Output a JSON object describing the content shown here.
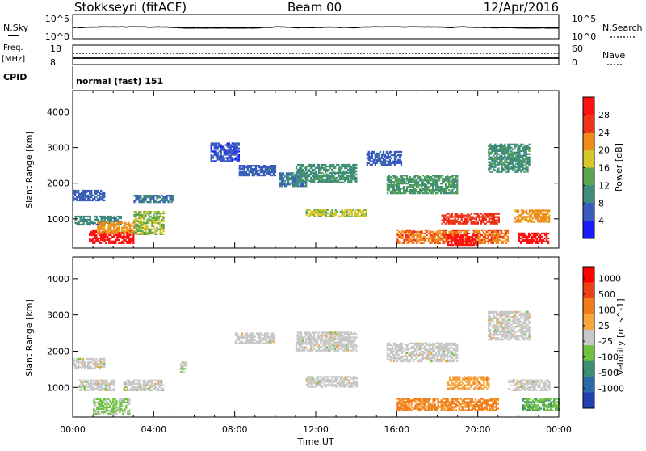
{
  "header": {
    "station": "Stokkseyri (fitACF)",
    "beam": "Beam 00",
    "date": "12/Apr/2016"
  },
  "noise_panel": {
    "left_label": "N.Sky",
    "right_label": "N.Search",
    "left_ticks": [
      "10^5",
      "10^0"
    ],
    "right_ticks": [
      "10^5",
      "10^0"
    ]
  },
  "freq_panel": {
    "left_label_1": "Freq.",
    "left_label_2": "[MHz]",
    "left_ticks": [
      "18",
      "8"
    ],
    "right_ticks": [
      "60",
      "0"
    ],
    "right_label": "Nave"
  },
  "cpid": {
    "label": "CPID",
    "value": "normal (fast) 151"
  },
  "time_axis": {
    "label": "Time UT",
    "ticks": [
      "00:00",
      "04:00",
      "08:00",
      "12:00",
      "16:00",
      "20:00",
      "00:00"
    ]
  },
  "chart_data": [
    {
      "type": "heatmap",
      "title": "",
      "xlabel": "",
      "ylabel": "Slant Range [km]",
      "xlim": [
        0,
        24
      ],
      "ylim": [
        180,
        4600
      ],
      "y_ticks": [
        1000,
        2000,
        3000,
        4000
      ],
      "colorbar": {
        "label": "Power [dB]",
        "ticks": [
          "4",
          "8",
          "12",
          "16",
          "20",
          "24",
          "28"
        ],
        "colors": [
          "#1a1aff",
          "#3b5cbf",
          "#3f8c7a",
          "#5aa650",
          "#d6c62a",
          "#f08a1a",
          "#ee3316",
          "#ff1010"
        ],
        "range": [
          0,
          30
        ]
      },
      "regions": [
        {
          "t": [
            0.0,
            1.6
          ],
          "r": [
            1500,
            1800
          ],
          "v": 6
        },
        {
          "t": [
            0.1,
            2.4
          ],
          "r": [
            820,
            1050
          ],
          "v": 9
        },
        {
          "t": [
            0.8,
            3.0
          ],
          "r": [
            300,
            700
          ],
          "v": 28
        },
        {
          "t": [
            1.2,
            3.2
          ],
          "r": [
            600,
            900
          ],
          "v": 20
        },
        {
          "t": [
            3.0,
            4.5
          ],
          "r": [
            550,
            1200
          ],
          "v": 15
        },
        {
          "t": [
            3.0,
            5.0
          ],
          "r": [
            1450,
            1650
          ],
          "v": 8
        },
        {
          "t": [
            6.8,
            8.2
          ],
          "r": [
            2600,
            3100
          ],
          "v": 5
        },
        {
          "t": [
            8.2,
            10.0
          ],
          "r": [
            2200,
            2500
          ],
          "v": 6
        },
        {
          "t": [
            10.2,
            11.5
          ],
          "r": [
            1900,
            2300
          ],
          "v": 8
        },
        {
          "t": [
            11.0,
            14.0
          ],
          "r": [
            2000,
            2500
          ],
          "v": 10
        },
        {
          "t": [
            11.5,
            14.5
          ],
          "r": [
            1050,
            1250
          ],
          "v": 16
        },
        {
          "t": [
            14.5,
            16.2
          ],
          "r": [
            2500,
            2900
          ],
          "v": 6
        },
        {
          "t": [
            15.5,
            19.0
          ],
          "r": [
            1700,
            2200
          ],
          "v": 11
        },
        {
          "t": [
            16.0,
            21.5
          ],
          "r": [
            300,
            700
          ],
          "v": 22
        },
        {
          "t": [
            18.5,
            20.0
          ],
          "r": [
            250,
            550
          ],
          "v": 28
        },
        {
          "t": [
            18.2,
            21.0
          ],
          "r": [
            850,
            1150
          ],
          "v": 25
        },
        {
          "t": [
            20.5,
            22.5
          ],
          "r": [
            2300,
            3100
          ],
          "v": 10
        },
        {
          "t": [
            21.8,
            23.5
          ],
          "r": [
            900,
            1250
          ],
          "v": 20
        },
        {
          "t": [
            22.0,
            23.5
          ],
          "r": [
            300,
            600
          ],
          "v": 28
        }
      ]
    },
    {
      "type": "heatmap",
      "title": "",
      "xlabel": "Time UT",
      "ylabel": "Slant Range [km]",
      "xlim": [
        0,
        24
      ],
      "ylim": [
        180,
        4600
      ],
      "y_ticks": [
        1000,
        2000,
        3000,
        4000
      ],
      "colorbar": {
        "label": "Velocity [m s^-1]",
        "ticks": [
          "1000",
          "500",
          "100",
          "25",
          "-25",
          "-100",
          "-500",
          "-1000"
        ],
        "colors": [
          "#2040b0",
          "#2f6aa8",
          "#3e8e70",
          "#6dc23e",
          "#c8c8c8",
          "#f5a53a",
          "#f07d1a",
          "#ee4015",
          "#ff0000"
        ],
        "range": [
          -1000,
          1000
        ]
      },
      "regions": [
        {
          "t": [
            0.0,
            1.6
          ],
          "r": [
            1500,
            1800
          ],
          "v": 0
        },
        {
          "t": [
            0.3,
            2.0
          ],
          "r": [
            900,
            1200
          ],
          "v": 0
        },
        {
          "t": [
            1.0,
            2.8
          ],
          "r": [
            250,
            700
          ],
          "v": 150
        },
        {
          "t": [
            2.5,
            4.5
          ],
          "r": [
            900,
            1200
          ],
          "v": 0
        },
        {
          "t": [
            5.3,
            5.6
          ],
          "r": [
            1400,
            1700
          ],
          "v": 60
        },
        {
          "t": [
            8.0,
            10.0
          ],
          "r": [
            2200,
            2500
          ],
          "v": 0
        },
        {
          "t": [
            11.0,
            14.0
          ],
          "r": [
            2000,
            2500
          ],
          "v": 0
        },
        {
          "t": [
            11.5,
            14.0
          ],
          "r": [
            1000,
            1300
          ],
          "v": 0
        },
        {
          "t": [
            15.5,
            19.0
          ],
          "r": [
            1700,
            2200
          ],
          "v": 0
        },
        {
          "t": [
            16.0,
            21.0
          ],
          "r": [
            350,
            700
          ],
          "v": -400
        },
        {
          "t": [
            18.5,
            20.5
          ],
          "r": [
            950,
            1300
          ],
          "v": -250
        },
        {
          "t": [
            20.5,
            22.5
          ],
          "r": [
            2300,
            3100
          ],
          "v": 0
        },
        {
          "t": [
            22.2,
            24.0
          ],
          "r": [
            350,
            700
          ],
          "v": 300
        },
        {
          "t": [
            21.5,
            23.5
          ],
          "r": [
            900,
            1200
          ],
          "v": 0
        }
      ]
    }
  ]
}
